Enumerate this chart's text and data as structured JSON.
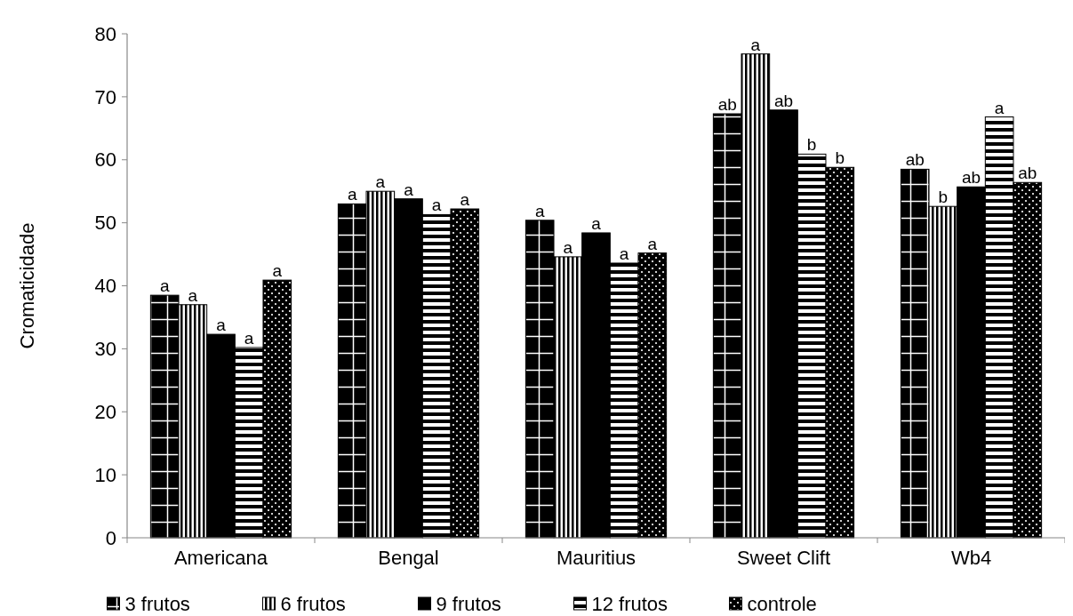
{
  "chart_data": {
    "type": "bar",
    "ylabel": "Cromaticidade",
    "categories": [
      "Americana",
      "Bengal",
      "Mauritius",
      "Sweet Clift",
      "Wb4"
    ],
    "series": [
      {
        "name": "3 frutos",
        "color": "#000000",
        "values": [
          38.5,
          53.0,
          50.4,
          67.3,
          58.5
        ],
        "value_labels": [
          "a",
          "a",
          "a",
          "ab",
          "ab"
        ]
      },
      {
        "name": "6 frutos",
        "color": "#000000",
        "values": [
          37.0,
          55.0,
          44.6,
          76.8,
          52.6
        ],
        "value_labels": [
          "a",
          "a",
          "a",
          "a",
          "b"
        ]
      },
      {
        "name": "9 frutos",
        "color": "#000000",
        "values": [
          32.3,
          53.8,
          48.4,
          67.9,
          55.7
        ],
        "value_labels": [
          "a",
          "a",
          "a",
          "ab",
          "ab"
        ]
      },
      {
        "name": "12 frutos",
        "color": "#000000",
        "values": [
          30.2,
          51.3,
          43.6,
          60.9,
          66.8
        ],
        "value_labels": [
          "a",
          "a",
          "a",
          "b",
          "a"
        ]
      },
      {
        "name": "controle",
        "color": "#000000",
        "values": [
          40.9,
          52.2,
          45.2,
          58.8,
          56.4
        ],
        "value_labels": [
          "a",
          "a",
          "a",
          "b",
          "ab"
        ]
      }
    ],
    "ylim": [
      0,
      80
    ],
    "yticks": [
      0,
      10,
      20,
      30,
      40,
      50,
      60,
      70,
      80
    ],
    "grid": false,
    "legend": "bottom"
  }
}
